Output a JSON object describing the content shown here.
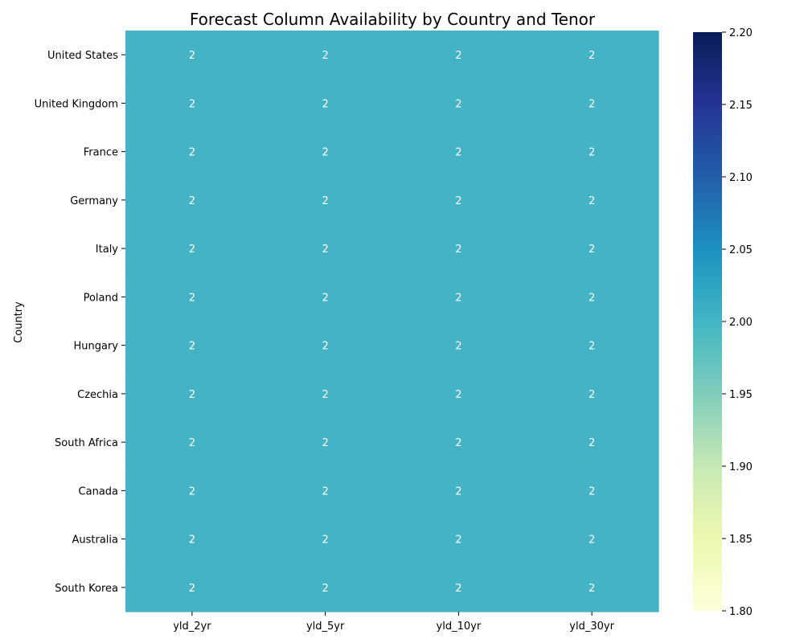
{
  "chart_data": {
    "type": "heatmap",
    "title": "Forecast Column Availability by Country and Tenor",
    "xlabel": "",
    "ylabel": "Country",
    "x_categories": [
      "yld_2yr",
      "yld_5yr",
      "yld_10yr",
      "yld_30yr"
    ],
    "y_categories": [
      "United States",
      "United Kingdom",
      "France",
      "Germany",
      "Italy",
      "Poland",
      "Hungary",
      "Czechia",
      "South Africa",
      "Canada",
      "Australia",
      "South Korea"
    ],
    "values": [
      [
        2,
        2,
        2,
        2
      ],
      [
        2,
        2,
        2,
        2
      ],
      [
        2,
        2,
        2,
        2
      ],
      [
        2,
        2,
        2,
        2
      ],
      [
        2,
        2,
        2,
        2
      ],
      [
        2,
        2,
        2,
        2
      ],
      [
        2,
        2,
        2,
        2
      ],
      [
        2,
        2,
        2,
        2
      ],
      [
        2,
        2,
        2,
        2
      ],
      [
        2,
        2,
        2,
        2
      ],
      [
        2,
        2,
        2,
        2
      ],
      [
        2,
        2,
        2,
        2
      ]
    ],
    "annotations": true,
    "colormap": "YlGnBu",
    "colorbar": {
      "range": [
        1.8,
        2.2
      ],
      "ticks": [
        1.8,
        1.85,
        1.9,
        1.95,
        2.0,
        2.05,
        2.1,
        2.15,
        2.2
      ],
      "tick_labels": [
        "1.80",
        "1.85",
        "1.90",
        "1.95",
        "2.00",
        "2.05",
        "2.10",
        "2.15",
        "2.20"
      ]
    },
    "cell_color": "#43b3c5",
    "annotation_color": "#ffffff",
    "grid": false,
    "legend": "colorbar right"
  }
}
